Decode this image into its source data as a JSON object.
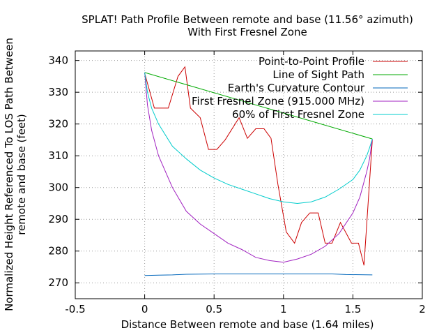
{
  "chart_data": {
    "type": "line",
    "title": "SPLAT! Path Profile Between remote   and base (11.56° azimuth)",
    "subtitle": "With First Fresnel Zone",
    "xlabel": "Distance Between remote   and base (1.64 miles)",
    "ylabel_line1": "Normalized Height Referenced To LOS Path Between",
    "ylabel_line2": "remote   and base (feet)",
    "xlim": [
      -0.5,
      2
    ],
    "ylim": [
      265,
      343
    ],
    "xticks": [
      "-0.5",
      "0",
      "0.5",
      "1",
      "1.5",
      "2"
    ],
    "xtick_values": [
      -0.5,
      0,
      0.5,
      1,
      1.5,
      2
    ],
    "yticks": [
      "270",
      "280",
      "290",
      "300",
      "310",
      "320",
      "330",
      "340"
    ],
    "ytick_values": [
      270,
      280,
      290,
      300,
      310,
      320,
      330,
      340
    ],
    "grid": true,
    "legend_position": "top-right",
    "series": [
      {
        "name": "Point-to-Point Profile",
        "color": "#cc0000",
        "x": [
          0,
          0.07,
          0.17,
          0.24,
          0.29,
          0.33,
          0.4,
          0.46,
          0.52,
          0.58,
          0.68,
          0.74,
          0.8,
          0.86,
          0.91,
          0.96,
          1.02,
          1.08,
          1.13,
          1.19,
          1.25,
          1.3,
          1.35,
          1.41,
          1.49,
          1.54,
          1.58,
          1.64
        ],
        "y": [
          336,
          325,
          325,
          335,
          338,
          325,
          322,
          312,
          312,
          315,
          322,
          315.5,
          318.5,
          318.5,
          315.5,
          301,
          286,
          282.5,
          289,
          292,
          292,
          282.5,
          282.5,
          289,
          282.5,
          282.5,
          275.5,
          315
        ]
      },
      {
        "name": "Line of Sight Path",
        "color": "#00aa00",
        "x": [
          0,
          1.64
        ],
        "y": [
          336.2,
          315.3
        ]
      },
      {
        "name": "Earth's Curvature Contour",
        "color": "#0066bb",
        "x": [
          0,
          0.1,
          0.2,
          0.3,
          0.5,
          0.8,
          1.0,
          1.2,
          1.35,
          1.45,
          1.64
        ],
        "y": [
          272.3,
          272.4,
          272.5,
          272.7,
          272.8,
          272.8,
          272.8,
          272.8,
          272.8,
          272.6,
          272.5
        ]
      },
      {
        "name": "First Fresnel Zone (915.000 MHz)",
        "color": "#a020c0",
        "x": [
          0,
          0.02,
          0.05,
          0.1,
          0.2,
          0.3,
          0.4,
          0.5,
          0.6,
          0.7,
          0.8,
          0.9,
          1.0,
          1.1,
          1.2,
          1.3,
          1.4,
          1.5,
          1.55,
          1.6,
          1.62,
          1.64
        ],
        "y": [
          336.2,
          326,
          318,
          310,
          300,
          292.5,
          288.5,
          285.5,
          282.5,
          280.5,
          278,
          277,
          276.5,
          277.5,
          279,
          281.5,
          285.5,
          292,
          297,
          305,
          309,
          315.3
        ]
      },
      {
        "name": "60% of First Fresnel Zone",
        "color": "#00cccc",
        "x": [
          0,
          0.02,
          0.05,
          0.1,
          0.2,
          0.3,
          0.4,
          0.5,
          0.6,
          0.7,
          0.8,
          0.9,
          1.0,
          1.1,
          1.2,
          1.3,
          1.4,
          1.5,
          1.55,
          1.6,
          1.62,
          1.64
        ],
        "y": [
          336.2,
          330,
          325,
          320,
          313,
          309,
          305.5,
          303,
          301,
          299.5,
          298,
          296.5,
          295.5,
          295,
          295.5,
          297,
          299.5,
          302.5,
          305.5,
          310,
          312.5,
          315.3
        ]
      }
    ]
  }
}
